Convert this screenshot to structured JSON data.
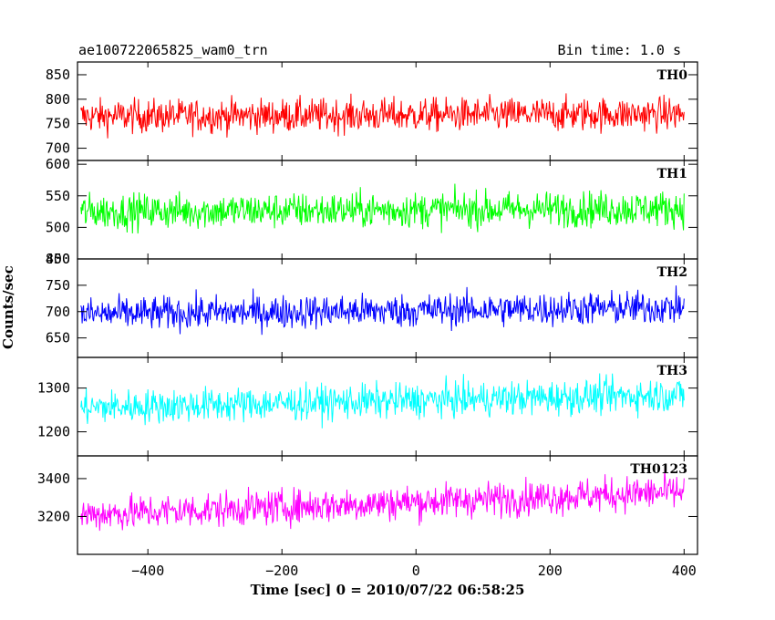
{
  "header": {
    "left": "ae100722065825_wam0_trn",
    "right": "Bin time: 1.0 s"
  },
  "axes": {
    "xlabel": "Time [sec] 0 = 2010/07/22 06:58:25",
    "ylabel": "Counts/sec"
  },
  "chart_data": {
    "type": "line",
    "title": "ae100722065825_wam0_trn",
    "subtitle": "Bin time: 1.0 s",
    "xlabel": "Time [sec] 0 = 2010/07/22 06:58:25",
    "ylabel": "Counts/sec",
    "xlim": [
      -505,
      420
    ],
    "x_ticks": [
      -400,
      -200,
      0,
      200,
      400
    ],
    "x_tick_labels": [
      "−400",
      "−200",
      "0",
      "200",
      "400"
    ],
    "x_sampling": {
      "start": -500,
      "end": 400,
      "step": 1
    },
    "panels": [
      {
        "name": "TH0",
        "color": "#ff0000",
        "ylim": [
          675,
          876
        ],
        "yticks": [
          700,
          750,
          800,
          850
        ],
        "mean_start": 765,
        "mean_end": 770,
        "spread": 28,
        "clip_low": 675,
        "clip_high": 876
      },
      {
        "name": "TH1",
        "color": "#00ff00",
        "ylim": [
          450,
          606
        ],
        "yticks": [
          450,
          500,
          550,
          600
        ],
        "mean_start": 525,
        "mean_end": 530,
        "spread": 23,
        "clip_low": 450,
        "clip_high": 606
      },
      {
        "name": "TH2",
        "color": "#0000ff",
        "ylim": [
          613,
          800
        ],
        "yticks": [
          650,
          700,
          750,
          800
        ],
        "mean_start": 695,
        "mean_end": 708,
        "spread": 26,
        "clip_low": 613,
        "clip_high": 800
      },
      {
        "name": "TH3",
        "color": "#00ffff",
        "ylim": [
          1145,
          1370
        ],
        "yticks": [
          1200,
          1300
        ],
        "mean_start": 1255,
        "mean_end": 1285,
        "spread": 32,
        "clip_low": 1145,
        "clip_high": 1370
      },
      {
        "name": "TH0123",
        "color": "#ff00ff",
        "ylim": [
          3000,
          3520
        ],
        "yticks": [
          3200,
          3400
        ],
        "mean_start": 3210,
        "mean_end": 3330,
        "spread": 75,
        "clip_low": 3000,
        "clip_high": 3520
      }
    ]
  }
}
